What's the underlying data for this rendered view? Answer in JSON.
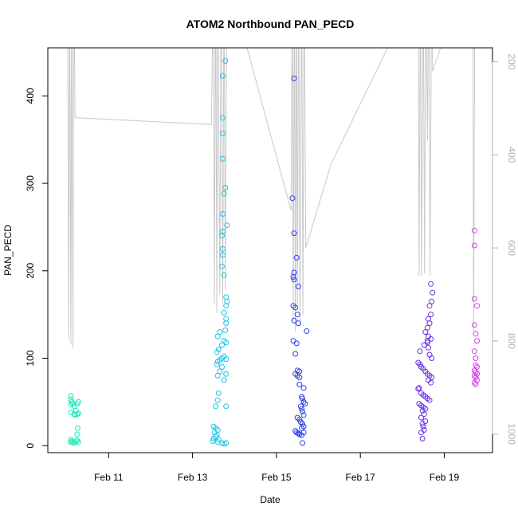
{
  "chart_data": {
    "type": "scatter",
    "title": "ATOM2 Northbound PAN_PECD",
    "xlabel": "Date",
    "ylabel": "PAN_PECD",
    "x_ticks": [
      "Feb 11",
      "Feb 13",
      "Feb 15",
      "Feb 17",
      "Feb 19"
    ],
    "x_tick_days": [
      11,
      13,
      15,
      17,
      19
    ],
    "xlim_days": [
      9.55,
      20.15
    ],
    "ylim": [
      -8,
      455
    ],
    "y_ticks": [
      "0",
      "100",
      "200",
      "300",
      "400"
    ],
    "y_tick_values": [
      0,
      100,
      200,
      300,
      400
    ],
    "right_axis": {
      "ylim": [
        1040,
        170
      ],
      "ticks": [
        "200",
        "400",
        "600",
        "800",
        "1000"
      ],
      "tick_values": [
        200,
        400,
        600,
        800,
        1000
      ],
      "color": "#b0b0b0"
    },
    "altitude_trace": {
      "color": "#c8c8c8",
      "points": [
        [
          10.02,
          0
        ],
        [
          10.05,
          795
        ],
        [
          10.07,
          0
        ],
        [
          10.1,
          808
        ],
        [
          10.12,
          0
        ],
        [
          10.15,
          815
        ],
        [
          10.17,
          0
        ],
        [
          10.2,
          320
        ],
        [
          13.45,
          335
        ],
        [
          13.5,
          0
        ],
        [
          13.52,
          720
        ],
        [
          13.55,
          0
        ],
        [
          13.58,
          740
        ],
        [
          13.6,
          0
        ],
        [
          13.65,
          700
        ],
        [
          13.68,
          0
        ],
        [
          13.72,
          720
        ],
        [
          13.75,
          0
        ],
        [
          13.78,
          690
        ],
        [
          13.82,
          0
        ],
        [
          13.85,
          0
        ],
        [
          14.3,
          170
        ],
        [
          15.35,
          520
        ],
        [
          15.38,
          0
        ],
        [
          15.4,
          760
        ],
        [
          15.43,
          0
        ],
        [
          15.45,
          780
        ],
        [
          15.48,
          0
        ],
        [
          15.5,
          730
        ],
        [
          15.53,
          0
        ],
        [
          15.56,
          770
        ],
        [
          15.6,
          0
        ],
        [
          15.63,
          745
        ],
        [
          15.66,
          0
        ],
        [
          15.7,
          600
        ],
        [
          16.3,
          420
        ],
        [
          18.3,
          50
        ],
        [
          18.38,
          0
        ],
        [
          18.4,
          660
        ],
        [
          18.43,
          0
        ],
        [
          18.46,
          660
        ],
        [
          18.5,
          0
        ],
        [
          18.53,
          655
        ],
        [
          18.56,
          0
        ],
        [
          18.6,
          370
        ],
        [
          18.63,
          0
        ],
        [
          18.66,
          660
        ],
        [
          18.7,
          0
        ],
        [
          18.72,
          220
        ],
        [
          18.95,
          160
        ],
        [
          19.65,
          160
        ],
        [
          19.68,
          0
        ],
        [
          19.7,
          780
        ],
        [
          19.73,
          0
        ],
        [
          19.75,
          160
        ]
      ]
    },
    "series": [
      {
        "color": "#1ee8b8",
        "points": [
          [
            10.1,
            57
          ],
          [
            10.1,
            53
          ],
          [
            10.12,
            50
          ],
          [
            10.15,
            48
          ],
          [
            10.1,
            47
          ],
          [
            10.18,
            45
          ],
          [
            10.25,
            48
          ],
          [
            10.28,
            50
          ],
          [
            10.22,
            40
          ],
          [
            10.1,
            38
          ],
          [
            10.18,
            36
          ],
          [
            10.25,
            36
          ],
          [
            10.28,
            37
          ],
          [
            10.2,
            35
          ],
          [
            10.26,
            20
          ],
          [
            10.25,
            13
          ],
          [
            10.1,
            7
          ],
          [
            10.12,
            5
          ],
          [
            10.15,
            4
          ],
          [
            10.18,
            3
          ],
          [
            10.22,
            5
          ],
          [
            10.25,
            6
          ],
          [
            10.28,
            4
          ],
          [
            10.1,
            4
          ]
        ]
      },
      {
        "color": "#22c2e8",
        "points": [
          [
            13.5,
            22
          ],
          [
            13.55,
            20
          ],
          [
            13.6,
            18
          ],
          [
            13.52,
            15
          ],
          [
            13.58,
            12
          ],
          [
            13.55,
            10
          ],
          [
            13.5,
            8
          ],
          [
            13.62,
            7
          ],
          [
            13.48,
            5
          ],
          [
            13.6,
            4
          ],
          [
            13.7,
            3
          ],
          [
            13.8,
            3
          ],
          [
            13.75,
            2
          ],
          [
            13.55,
            45
          ],
          [
            13.6,
            52
          ],
          [
            13.62,
            60
          ],
          [
            13.8,
            45
          ],
          [
            13.6,
            80
          ],
          [
            13.65,
            85
          ],
          [
            13.7,
            90
          ],
          [
            13.75,
            75
          ],
          [
            13.8,
            82
          ],
          [
            13.58,
            93
          ],
          [
            13.6,
            96
          ],
          [
            13.65,
            98
          ],
          [
            13.7,
            100
          ],
          [
            13.75,
            102
          ],
          [
            13.8,
            99
          ],
          [
            13.58,
            107
          ],
          [
            13.62,
            110
          ],
          [
            13.7,
            115
          ],
          [
            13.75,
            120
          ],
          [
            13.8,
            118
          ],
          [
            13.6,
            125
          ],
          [
            13.65,
            130
          ],
          [
            13.78,
            132
          ],
          [
            13.8,
            140
          ],
          [
            13.8,
            145
          ],
          [
            13.75,
            152
          ],
          [
            13.8,
            160
          ],
          [
            13.82,
            165
          ],
          [
            13.8,
            170
          ],
          [
            13.75,
            195
          ],
          [
            13.7,
            205
          ],
          [
            13.72,
            218
          ],
          [
            13.72,
            225
          ],
          [
            13.7,
            240
          ],
          [
            13.72,
            245
          ],
          [
            13.82,
            252
          ],
          [
            13.72,
            265
          ],
          [
            13.75,
            288
          ],
          [
            13.78,
            295
          ],
          [
            13.72,
            328
          ],
          [
            13.72,
            357
          ],
          [
            13.72,
            375
          ],
          [
            13.72,
            423
          ],
          [
            13.78,
            440
          ]
        ]
      },
      {
        "color": "#2e40e8",
        "points": [
          [
            15.38,
            283
          ],
          [
            15.42,
            243
          ],
          [
            15.48,
            215
          ],
          [
            15.42,
            198
          ],
          [
            15.4,
            193
          ],
          [
            15.42,
            190
          ],
          [
            15.52,
            182
          ],
          [
            15.4,
            160
          ],
          [
            15.45,
            158
          ],
          [
            15.5,
            150
          ],
          [
            15.42,
            143
          ],
          [
            15.52,
            140
          ],
          [
            15.72,
            131
          ],
          [
            15.4,
            120
          ],
          [
            15.48,
            117
          ],
          [
            15.45,
            105
          ],
          [
            15.42,
            420
          ],
          [
            15.5,
            86
          ],
          [
            15.55,
            85
          ],
          [
            15.45,
            82
          ],
          [
            15.5,
            80
          ],
          [
            15.55,
            78
          ],
          [
            15.55,
            70
          ],
          [
            15.65,
            66
          ],
          [
            15.6,
            56
          ],
          [
            15.62,
            54
          ],
          [
            15.65,
            50
          ],
          [
            15.68,
            48
          ],
          [
            15.58,
            45
          ],
          [
            15.6,
            42
          ],
          [
            15.62,
            39
          ],
          [
            15.65,
            35
          ],
          [
            15.55,
            30
          ],
          [
            15.5,
            32
          ],
          [
            15.58,
            27
          ],
          [
            15.62,
            25
          ],
          [
            15.65,
            22
          ],
          [
            15.6,
            20
          ],
          [
            15.45,
            17
          ],
          [
            15.48,
            15
          ],
          [
            15.52,
            14
          ],
          [
            15.55,
            13
          ],
          [
            15.6,
            12
          ],
          [
            15.65,
            15
          ],
          [
            15.62,
            3
          ]
        ]
      },
      {
        "color": "#6a2ee8",
        "points": [
          [
            18.38,
            95
          ],
          [
            18.42,
            93
          ],
          [
            18.45,
            90
          ],
          [
            18.5,
            88
          ],
          [
            18.55,
            85
          ],
          [
            18.6,
            82
          ],
          [
            18.65,
            80
          ],
          [
            18.7,
            78
          ],
          [
            18.62,
            75
          ],
          [
            18.68,
            72
          ],
          [
            18.38,
            65
          ],
          [
            18.4,
            66
          ],
          [
            18.45,
            60
          ],
          [
            18.5,
            58
          ],
          [
            18.55,
            56
          ],
          [
            18.6,
            54
          ],
          [
            18.65,
            52
          ],
          [
            18.4,
            48
          ],
          [
            18.45,
            46
          ],
          [
            18.5,
            44
          ],
          [
            18.55,
            42
          ],
          [
            18.48,
            40
          ],
          [
            18.52,
            36
          ],
          [
            18.45,
            32
          ],
          [
            18.55,
            28
          ],
          [
            18.48,
            25
          ],
          [
            18.5,
            22
          ],
          [
            18.52,
            18
          ],
          [
            18.45,
            15
          ],
          [
            18.48,
            8
          ],
          [
            18.42,
            108
          ],
          [
            18.52,
            115
          ],
          [
            18.6,
            118
          ],
          [
            18.62,
            112
          ],
          [
            18.65,
            104
          ],
          [
            18.7,
            100
          ],
          [
            18.6,
            120
          ],
          [
            18.68,
            122
          ],
          [
            18.62,
            125
          ],
          [
            18.55,
            130
          ],
          [
            18.6,
            135
          ],
          [
            18.65,
            140
          ],
          [
            18.62,
            145
          ],
          [
            18.68,
            150
          ],
          [
            18.65,
            160
          ],
          [
            18.7,
            165
          ],
          [
            18.72,
            175
          ],
          [
            18.68,
            185
          ]
        ]
      },
      {
        "color": "#d23ee8",
        "points": [
          [
            19.72,
            246
          ],
          [
            19.72,
            229
          ],
          [
            19.72,
            168
          ],
          [
            19.78,
            160
          ],
          [
            19.72,
            138
          ],
          [
            19.75,
            128
          ],
          [
            19.78,
            120
          ],
          [
            19.72,
            108
          ],
          [
            19.75,
            100
          ],
          [
            19.75,
            92
          ],
          [
            19.78,
            90
          ],
          [
            19.72,
            86
          ],
          [
            19.75,
            84
          ],
          [
            19.78,
            82
          ],
          [
            19.72,
            80
          ],
          [
            19.75,
            78
          ],
          [
            19.78,
            75
          ],
          [
            19.72,
            72
          ],
          [
            19.75,
            70
          ]
        ]
      }
    ]
  }
}
